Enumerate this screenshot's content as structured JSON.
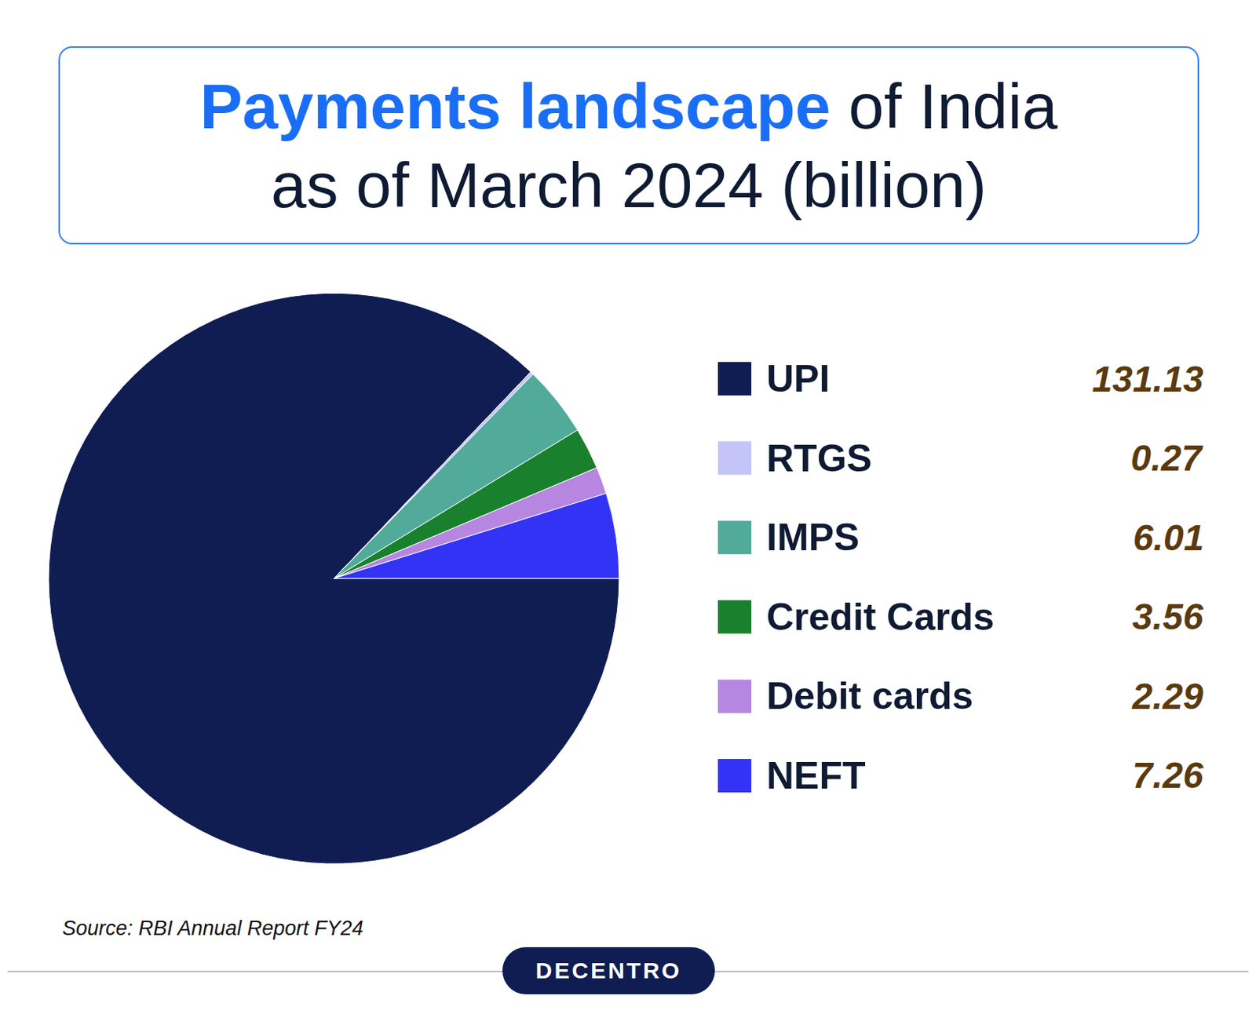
{
  "chart_data": {
    "type": "pie",
    "title": "Payments landscape of India as of March 2024 (billion)",
    "categories": [
      "UPI",
      "RTGS",
      "IMPS",
      "Credit Cards",
      "Debit cards",
      "NEFT"
    ],
    "values": [
      131.13,
      0.27,
      6.01,
      3.56,
      2.29,
      7.26
    ],
    "colors": [
      "#0f1d52",
      "#c4c4f8",
      "#52ab9a",
      "#19812e",
      "#b686e0",
      "#3333f5"
    ],
    "legend": "right",
    "annotations": [
      "Source: RBI Annual Report FY24",
      "DECENTRO"
    ]
  }
}
